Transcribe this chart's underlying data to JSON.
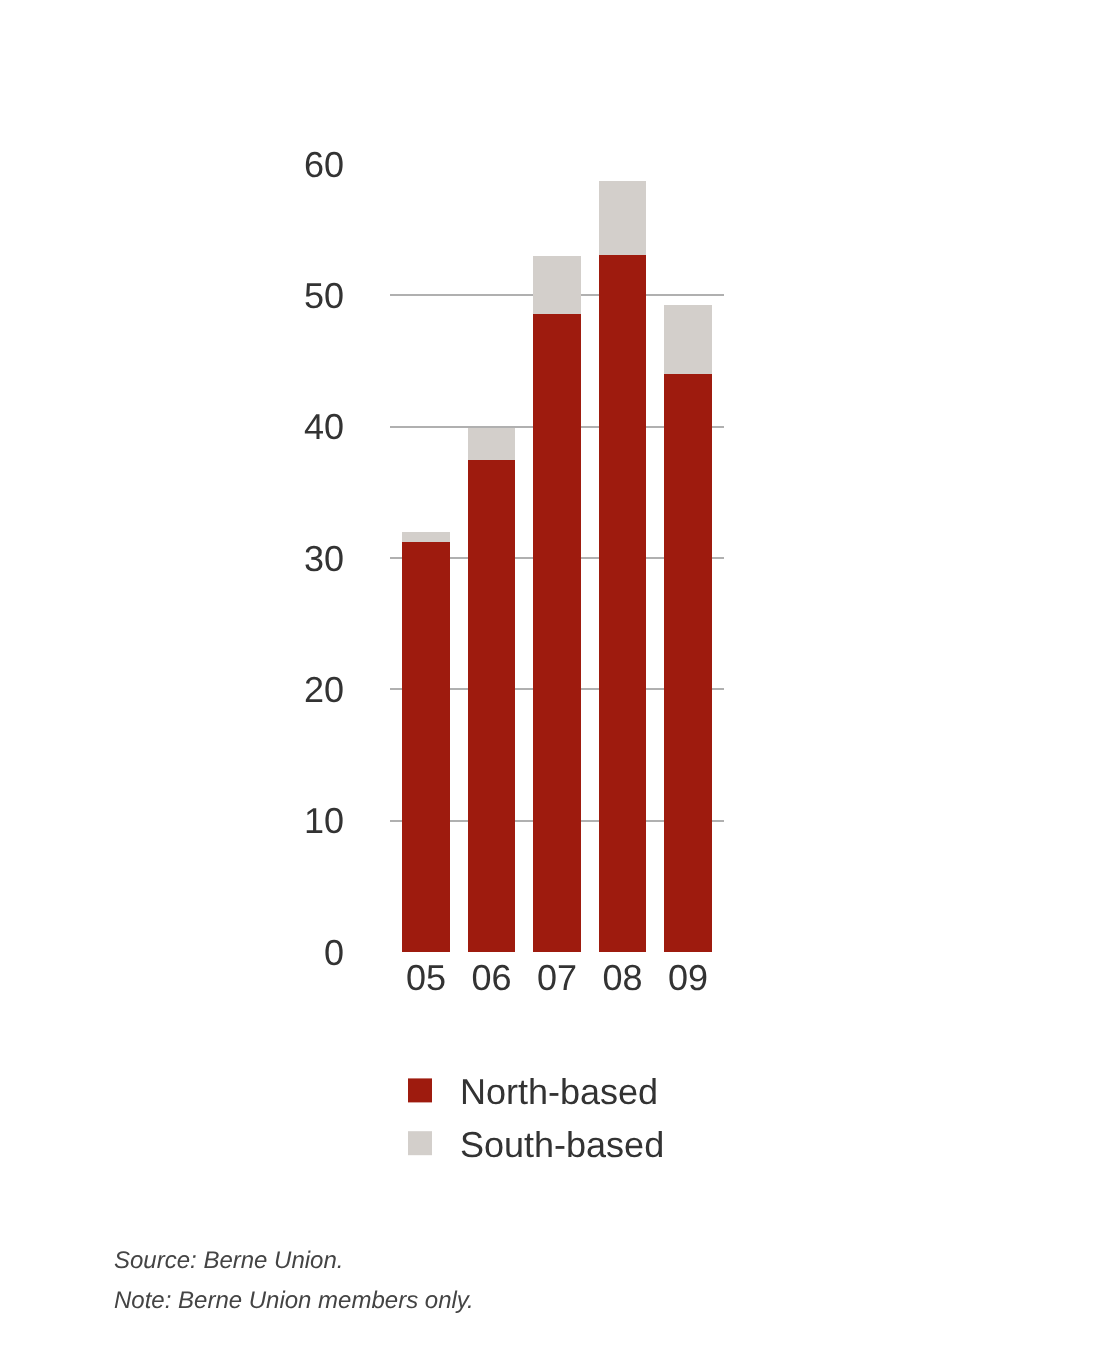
{
  "chart_data": {
    "type": "bar",
    "stacked": true,
    "categories": [
      "05",
      "06",
      "07",
      "08",
      "09"
    ],
    "series": [
      {
        "name": "North-based",
        "color": "#9e1b0e",
        "values": [
          31.2,
          37.5,
          48.6,
          53.1,
          44.0
        ]
      },
      {
        "name": "South-based",
        "color": "#d3cfcb",
        "values": [
          0.8,
          2.4,
          4.4,
          5.6,
          5.3
        ]
      }
    ],
    "ylim": [
      0,
      60
    ],
    "yticks": [
      0,
      10,
      20,
      30,
      40,
      50,
      60
    ],
    "grid": "y",
    "legend": "bottom",
    "annotations": [
      "Source: Berne Union.",
      "Note: Berne Union members only."
    ]
  }
}
